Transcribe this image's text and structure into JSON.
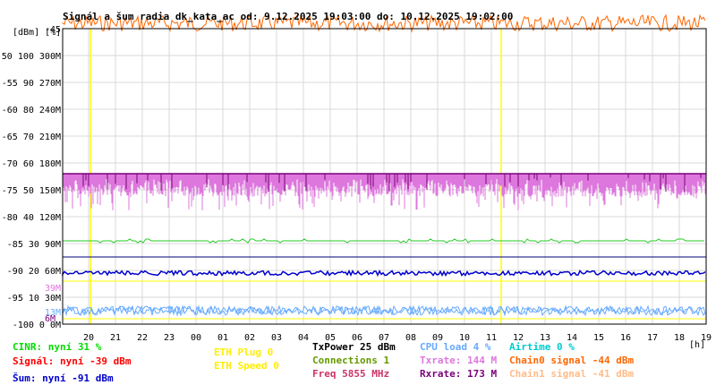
{
  "chart_data": {
    "type": "line",
    "title": "Signál a šum radia dk_kata_ac od: 9.12.2025 19:03:00 do: 10.12.2025 19:02:00",
    "ylabel": "[dBm] [%]",
    "xlabel": "[h]",
    "x_ticks": [
      "20",
      "21",
      "22",
      "23",
      "00",
      "01",
      "02",
      "03",
      "04",
      "05",
      "06",
      "07",
      "08",
      "09",
      "10",
      "11",
      "12",
      "13",
      "14",
      "15",
      "16",
      "17",
      "18",
      "19"
    ],
    "y_ticks": [
      {
        "dbm": "-45",
        "pct": "",
        "rate": ""
      },
      {
        "dbm": "-50",
        "pct": "100",
        "rate": "300M"
      },
      {
        "dbm": "-55",
        "pct": "90",
        "rate": "270M"
      },
      {
        "dbm": "-60",
        "pct": "80",
        "rate": "240M"
      },
      {
        "dbm": "-65",
        "pct": "70",
        "rate": "210M"
      },
      {
        "dbm": "-70",
        "pct": "60",
        "rate": "180M"
      },
      {
        "dbm": "-75",
        "pct": "50",
        "rate": "150M"
      },
      {
        "dbm": "-80",
        "pct": "40",
        "rate": "120M"
      },
      {
        "dbm": "-85",
        "pct": "30",
        "rate": "90M"
      },
      {
        "dbm": "-90",
        "pct": "20",
        "rate": "60M"
      },
      {
        "dbm": "-95",
        "pct": "10",
        "rate": "30M"
      },
      {
        "dbm": "-100",
        "pct": "0",
        "rate": "0M"
      }
    ],
    "y_range": [
      -100,
      -45
    ],
    "markers": {
      "txrate": "39M",
      "cpu": "13M",
      "rxrate": "6M"
    },
    "vertical_markers_hours": [
      20,
      11.3
    ],
    "series": [
      {
        "name": "Chain0 signal",
        "approx_dbm": -44,
        "color": "#ff6600"
      },
      {
        "name": "Txrate",
        "approx_dbm": -72,
        "min_dbm": -82,
        "color": "#dd77dd"
      },
      {
        "name": "Rxrate",
        "approx_dbm": -72,
        "color": "#7a007a"
      },
      {
        "name": "CINR",
        "approx_dbm": -84.5,
        "color": "#22cc22"
      },
      {
        "name": "Šum",
        "approx_dbm": -90.5,
        "color": "#0000cc"
      },
      {
        "name": "CPU load",
        "approx_dbm": -98,
        "color": "#66aaff"
      }
    ]
  },
  "legend": {
    "cinr": "CINR: nyní 31 %",
    "signal": "Signál: nyní -39 dBm",
    "noise": "Šum: nyní -91 dBm",
    "eth_plug": "ETH Plug 0",
    "eth_speed": "ETH Speed 0",
    "txpower": "TxPower 25 dBm",
    "connections": "Connections 1",
    "freq": "Freq 5855 MHz",
    "cpu": "CPU load 4 %",
    "txrate": "Txrate: 144 M",
    "rxrate": "Rxrate: 173 M",
    "airtime": "Airtime 0 %",
    "chain0": "Chain0 signal -44 dBm",
    "chain1": "Chain1 signal -41 dBm"
  },
  "colors": {
    "cinr": "#00dd00",
    "signal": "#ff0000",
    "noise": "#0000cc",
    "eth": "#ffff00",
    "txpower": "#000000",
    "connections": "#669900",
    "freq": "#cc3366",
    "cpu": "#66aaff",
    "txrate": "#dd77dd",
    "rxrate": "#7a007a",
    "airtime": "#00cccc",
    "chain0": "#ff6600",
    "chain1": "#ffbb88"
  }
}
